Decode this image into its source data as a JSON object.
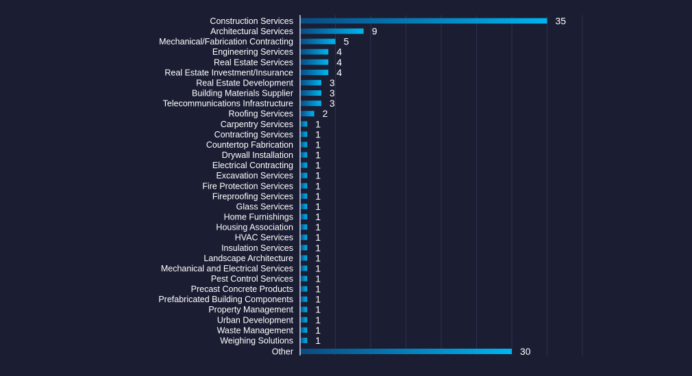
{
  "colors": {
    "background": "#1b1d33",
    "bar_start": "#0a4a80",
    "bar_end": "#00b4f0",
    "grid": "#2e3150",
    "text": "#ffffff"
  },
  "chart_data": {
    "type": "bar",
    "orientation": "horizontal",
    "title": "",
    "xlabel": "",
    "ylabel": "",
    "grid": true,
    "xlim": [
      0,
      40
    ],
    "categories": [
      "Construction Services",
      "Architectural Services",
      "Mechanical/Fabrication Contracting",
      "Engineering Services",
      "Real Estate Services",
      "Real Estate Investment/Insurance",
      "Real Estate Development",
      "Building Materials Supplier",
      "Telecommunications Infrastructure",
      "Roofing Services",
      "Carpentry Services",
      "Contracting Services",
      "Countertop Fabrication",
      "Drywall Installation",
      "Electrical Contracting",
      "Excavation Services",
      "Fire Protection Services",
      "Fireproofing Services",
      "Glass Services",
      "Home Furnishings",
      "Housing Association",
      "HVAC Services",
      "Insulation Services",
      "Landscape Architecture",
      "Mechanical and Electrical Services",
      "Pest Control Services",
      "Precast Concrete Products",
      "Prefabricated Building Components",
      "Property Management",
      "Urban Development",
      "Waste Management",
      "Weighing Solutions",
      "Other"
    ],
    "values": [
      35,
      9,
      5,
      4,
      4,
      4,
      3,
      3,
      3,
      2,
      1,
      1,
      1,
      1,
      1,
      1,
      1,
      1,
      1,
      1,
      1,
      1,
      1,
      1,
      1,
      1,
      1,
      1,
      1,
      1,
      1,
      1,
      30
    ]
  }
}
